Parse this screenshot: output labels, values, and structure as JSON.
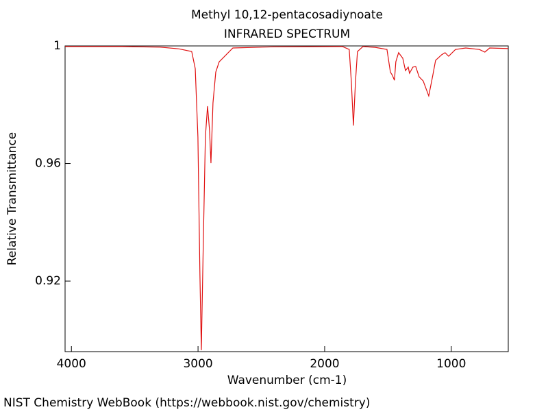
{
  "chart_data": {
    "type": "line",
    "title": "Methyl 10,12-pentacosadiynoate",
    "subtitle": "INFRARED SPECTRUM",
    "x_label": "Wavenumber (cm-1)",
    "y_label": "Relative Transmittance",
    "footer": "NIST Chemistry WebBook (https://webbook.nist.gov/chemistry)",
    "xlim": [
      4050,
      550
    ],
    "xticks": [
      4000,
      3000,
      2000,
      1000
    ],
    "ylim": [
      0.896,
      1
    ],
    "yticks": [
      1,
      0.96,
      0.92
    ],
    "series": [
      {
        "color": "#e01010",
        "x": [
          4050,
          3600,
          3300,
          3150,
          3050,
          3022,
          3001,
          2985,
          2974,
          2958,
          2942,
          2925,
          2909,
          2898,
          2882,
          2860,
          2833,
          2725,
          2400,
          1860,
          1806,
          1789,
          1773,
          1757,
          1741,
          1697,
          1600,
          1508,
          1481,
          1465,
          1449,
          1438,
          1416,
          1383,
          1362,
          1340,
          1330,
          1303,
          1281,
          1254,
          1222,
          1178,
          1146,
          1124,
          1076,
          1049,
          1021,
          967,
          886,
          778,
          735,
          697,
          550
        ],
        "values": [
          0.9998,
          0.9998,
          0.9996,
          0.999,
          0.9981,
          0.9923,
          0.969,
          0.922,
          0.8965,
          0.934,
          0.969,
          0.9795,
          0.9713,
          0.9601,
          0.9806,
          0.9911,
          0.9946,
          0.9993,
          0.9997,
          0.9998,
          0.9988,
          0.9876,
          0.9729,
          0.9876,
          0.9981,
          0.9998,
          0.9995,
          0.9988,
          0.9911,
          0.99,
          0.9883,
          0.9946,
          0.9977,
          0.9958,
          0.9916,
          0.9928,
          0.9907,
          0.9928,
          0.993,
          0.9895,
          0.9881,
          0.983,
          0.99,
          0.9951,
          0.997,
          0.9977,
          0.9965,
          0.9988,
          0.9993,
          0.9988,
          0.9979,
          0.9993,
          0.9991
        ]
      }
    ]
  }
}
